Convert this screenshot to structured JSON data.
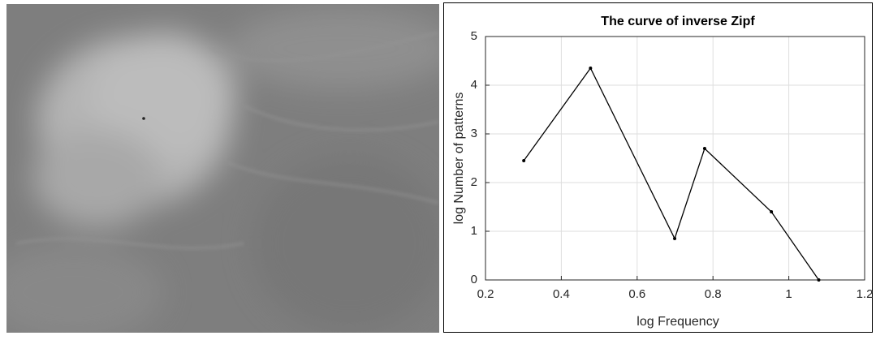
{
  "chart_data": {
    "type": "line",
    "title": "The curve of inverse Zipf",
    "x_label": "log Frequency",
    "y_label": "log Number of patterns",
    "series": [
      {
        "color": "#000000",
        "x": [
          0.301,
          0.477,
          0.699,
          0.778,
          0.954,
          1.079
        ],
        "values": [
          2.45,
          4.35,
          0.85,
          2.7,
          1.4,
          0
        ]
      }
    ],
    "xlim": [
      0.2,
      1.2
    ],
    "xticks": [
      0.2,
      0.4,
      0.6,
      0.8,
      1,
      1.2
    ],
    "ylim": [
      0,
      5
    ],
    "yticks": [
      0,
      1,
      2,
      3,
      4,
      5
    ],
    "grid": true
  }
}
